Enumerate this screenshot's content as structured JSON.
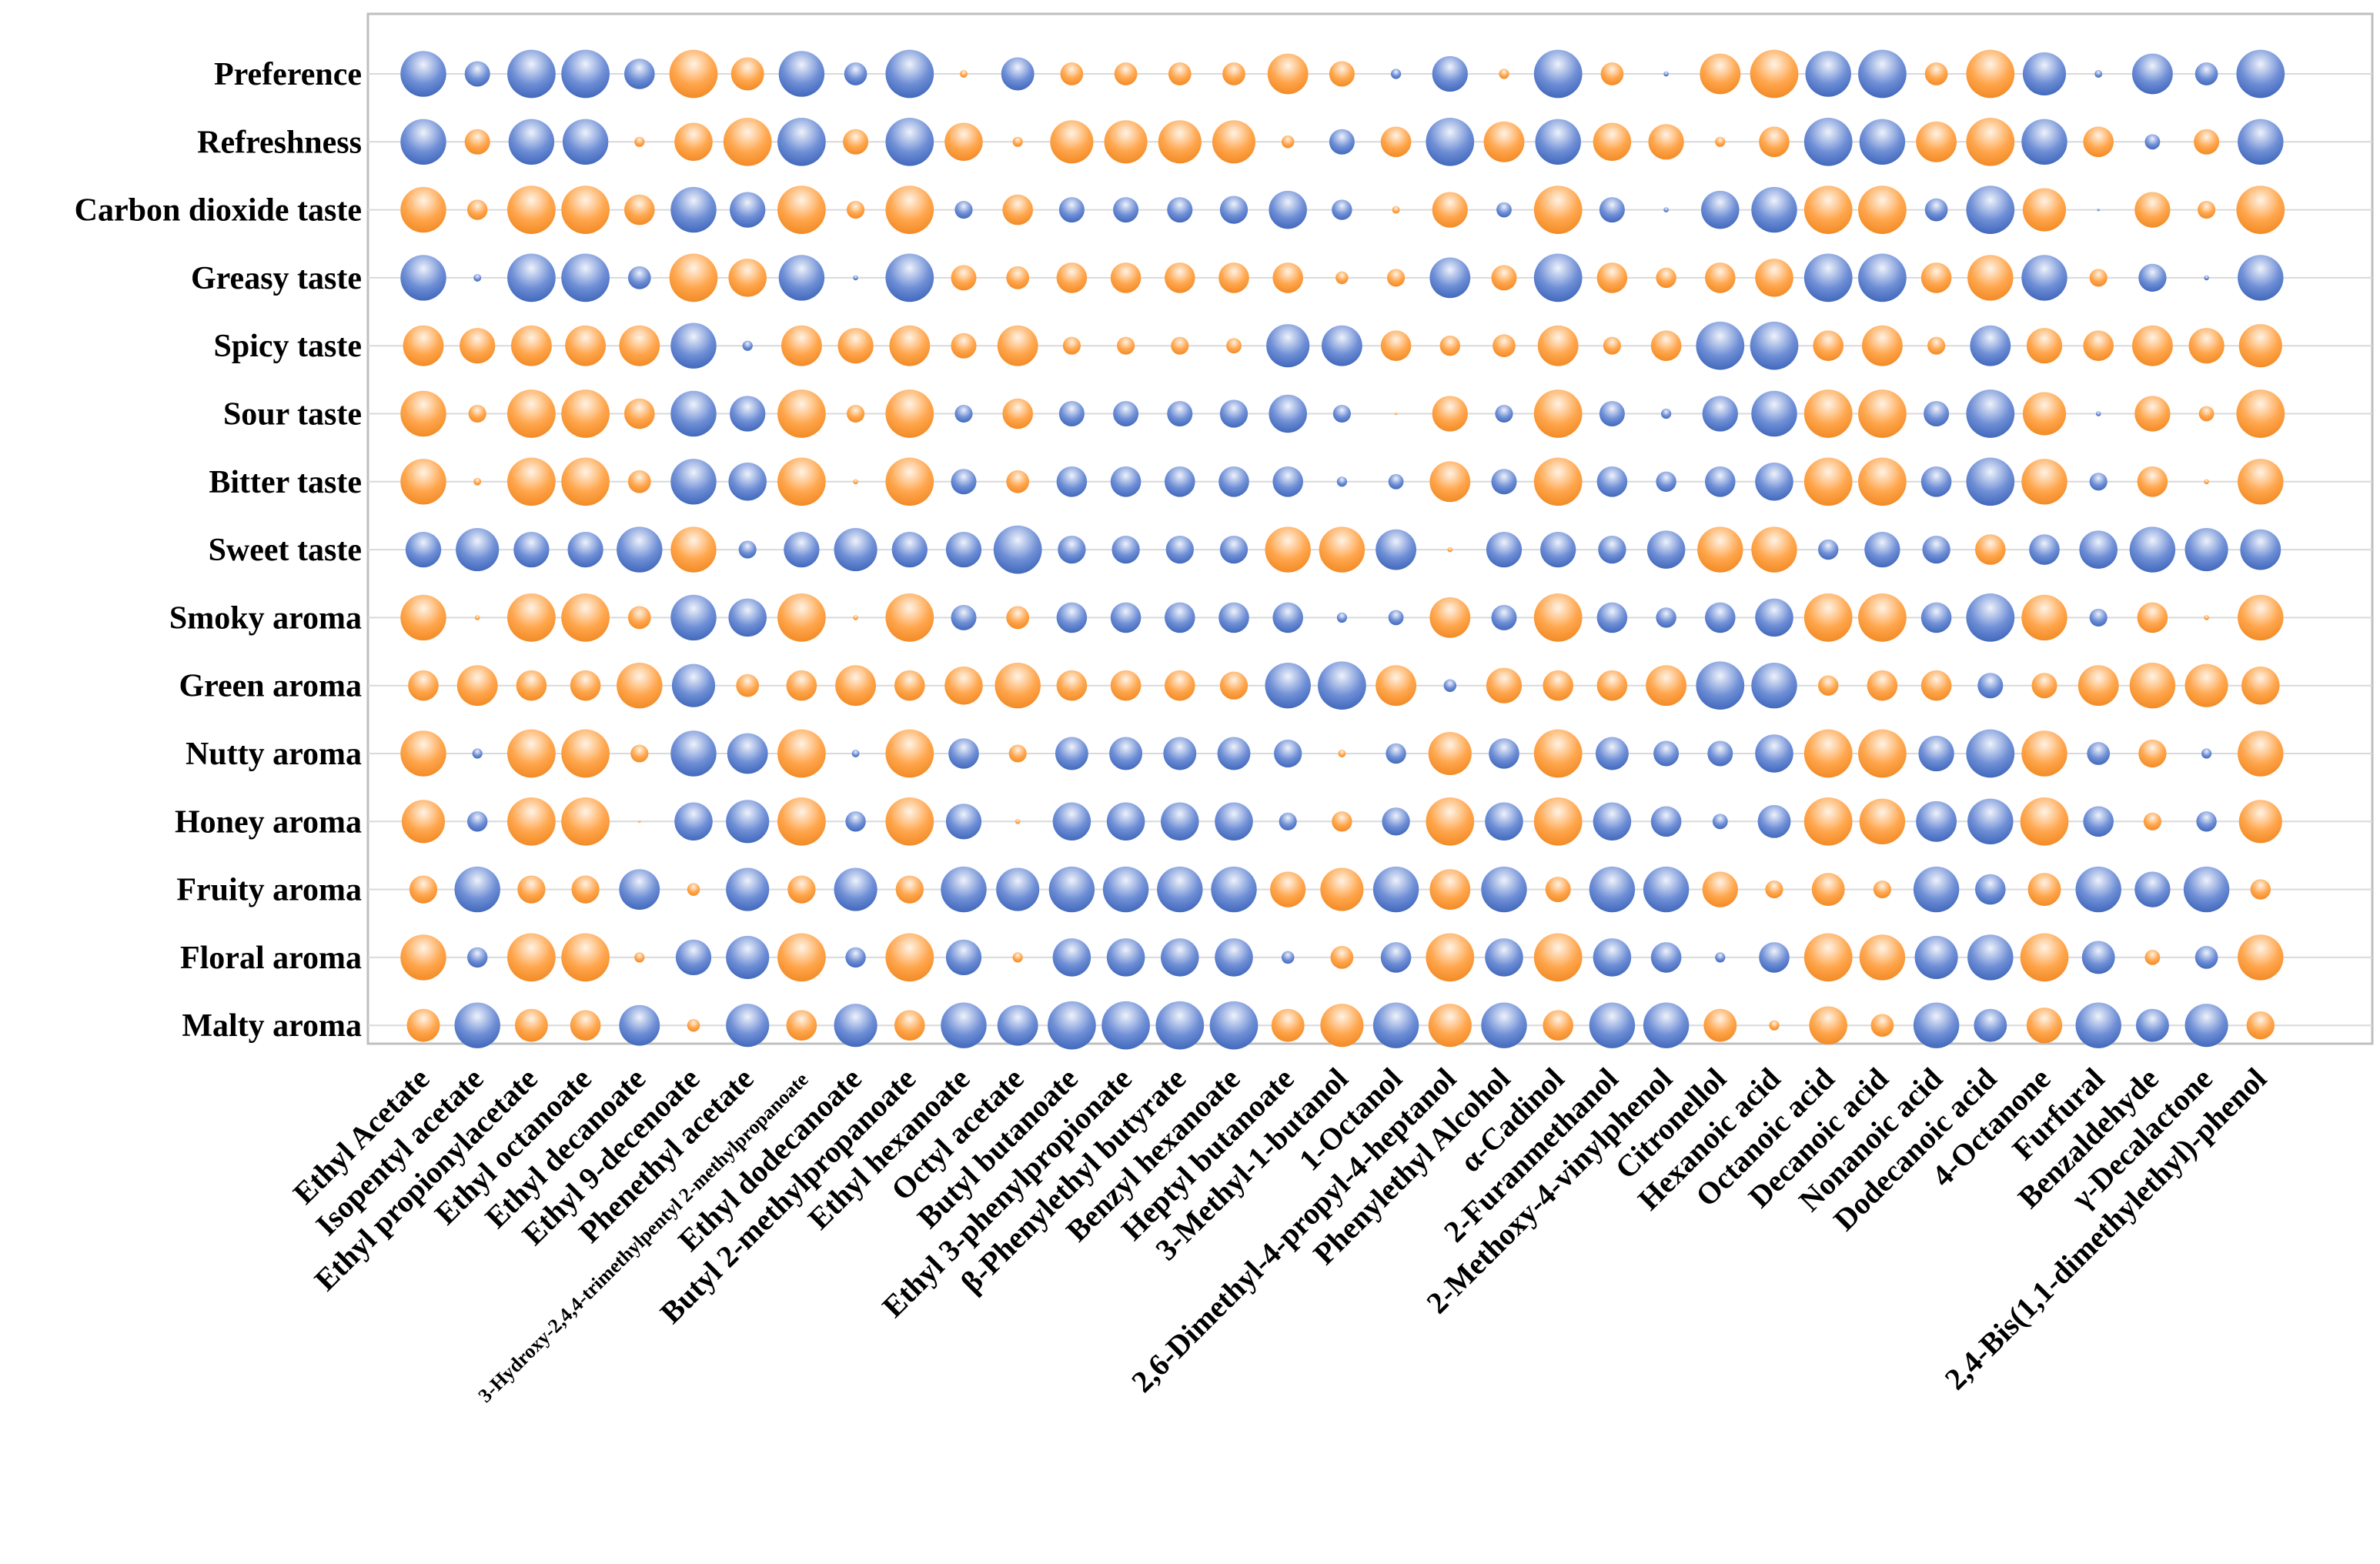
{
  "colors": {
    "positive": "#4472c4",
    "negative": "#ff9933"
  },
  "chart_data": {
    "type": "bubble-matrix",
    "legend": "none",
    "grid": true,
    "size_meaning": "absolute correlation",
    "color_meaning": "blue = positive, orange = negative",
    "rows": [
      "Preference",
      "Refreshness",
      "Carbon dioxide taste",
      "Greasy taste",
      "Spicy taste",
      "Sour taste",
      "Bitter taste",
      "Sweet taste",
      "Smoky aroma",
      "Green aroma",
      "Nutty aroma",
      "Honey aroma",
      "Fruity aroma",
      "Floral aroma",
      "Malty aroma"
    ],
    "columns": [
      "Ethyl Acetate",
      "Isopentyl acetate",
      "Ethyl propionylacetate",
      "Ethyl octanoate",
      "Ethyl decanoate",
      "Ethyl 9-decenoate",
      "Phenethyl acetate",
      "3-Hydroxy-2,4,4-trimethylpentyl 2-methylpropanoate",
      "Ethyl dodecanoate",
      "Butyl 2-methylpropanoate",
      "Ethyl hexanoate",
      "Octyl acetate",
      "Butyl butanoate",
      "Ethyl 3-phenylpropionate",
      "β-Phenylethyl butyrate",
      "Benzyl hexanoate",
      "Heptyl butanoate",
      "3-Methyl-1-butanol",
      "1-Octanol",
      "2,6-Dimethyl-4-propyl-4-heptanol",
      "Phenylethyl Alcohol",
      "α-Cadinol",
      "2-Furanmethanol",
      "2-Methoxy-4-vinylphenol",
      "Citronellol",
      "Hexanoic acid",
      "Octanoic acid",
      "Decanoic acid",
      "Nonanoic acid",
      "Dodecanoic acid",
      "4-Octanone",
      "Furfural",
      "Benzaldehyde",
      "γ-Decalactone",
      "2,4-Bis(1,1-dimethylethyl)-phenol"
    ],
    "values": [
      [
        0.9,
        0.5,
        0.95,
        0.95,
        0.6,
        -0.95,
        -0.65,
        0.9,
        0.45,
        0.95,
        -0.15,
        0.65,
        -0.45,
        -0.45,
        -0.45,
        -0.45,
        -0.8,
        -0.5,
        0.2,
        0.7,
        -0.2,
        0.95,
        -0.45,
        0.1,
        -0.8,
        -0.95,
        0.9,
        0.95,
        -0.45,
        -0.95,
        0.85,
        0.15,
        0.8,
        0.45,
        0.95
      ],
      [
        0.9,
        -0.5,
        0.9,
        0.9,
        -0.2,
        -0.75,
        -0.95,
        0.95,
        -0.5,
        0.95,
        -0.75,
        -0.2,
        -0.85,
        -0.85,
        -0.85,
        -0.85,
        -0.25,
        0.5,
        -0.6,
        0.95,
        -0.8,
        0.9,
        -0.75,
        -0.7,
        -0.2,
        -0.6,
        0.95,
        0.9,
        -0.8,
        -0.95,
        0.9,
        -0.6,
        0.3,
        -0.5,
        0.9
      ],
      [
        -0.9,
        -0.4,
        -0.95,
        -0.95,
        -0.6,
        0.9,
        0.7,
        -0.95,
        -0.35,
        -0.95,
        0.35,
        -0.6,
        0.5,
        0.5,
        0.5,
        0.55,
        0.75,
        0.4,
        -0.15,
        -0.7,
        0.3,
        -0.95,
        0.5,
        0.1,
        0.75,
        0.9,
        -0.95,
        -0.95,
        0.45,
        0.95,
        -0.85,
        0.05,
        -0.7,
        -0.35,
        -0.95
      ],
      [
        0.9,
        0.15,
        0.95,
        0.95,
        0.45,
        -0.95,
        -0.75,
        0.9,
        0.1,
        0.95,
        -0.5,
        -0.45,
        -0.6,
        -0.6,
        -0.6,
        -0.6,
        -0.6,
        -0.25,
        -0.35,
        0.8,
        -0.5,
        0.95,
        -0.6,
        -0.4,
        -0.6,
        -0.75,
        0.95,
        0.95,
        -0.6,
        -0.9,
        0.9,
        -0.35,
        0.55,
        0.1,
        0.9
      ],
      [
        -0.8,
        -0.7,
        -0.8,
        -0.8,
        -0.8,
        0.9,
        0.2,
        -0.8,
        -0.7,
        -0.8,
        -0.5,
        -0.8,
        -0.35,
        -0.35,
        -0.35,
        -0.3,
        0.85,
        0.8,
        -0.6,
        -0.4,
        -0.45,
        -0.8,
        -0.35,
        -0.6,
        0.95,
        0.95,
        -0.6,
        -0.8,
        -0.35,
        0.8,
        -0.7,
        -0.6,
        -0.8,
        -0.7,
        -0.85
      ],
      [
        -0.9,
        -0.35,
        -0.95,
        -0.95,
        -0.6,
        0.9,
        0.7,
        -0.95,
        -0.35,
        -0.95,
        0.35,
        -0.6,
        0.5,
        0.5,
        0.5,
        0.55,
        0.75,
        0.35,
        -0.05,
        -0.7,
        0.35,
        -0.95,
        0.5,
        0.2,
        0.7,
        0.9,
        -0.95,
        -0.95,
        0.5,
        0.95,
        -0.85,
        0.1,
        -0.7,
        -0.3,
        -0.95
      ],
      [
        -0.9,
        -0.15,
        -0.95,
        -0.95,
        -0.45,
        0.9,
        0.75,
        -0.95,
        -0.1,
        -0.95,
        0.5,
        -0.45,
        0.6,
        0.6,
        0.6,
        0.6,
        0.6,
        0.2,
        0.3,
        -0.8,
        0.5,
        -0.95,
        0.6,
        0.4,
        0.6,
        0.75,
        -0.95,
        -0.95,
        0.6,
        0.95,
        -0.9,
        0.35,
        -0.6,
        -0.1,
        -0.9
      ],
      [
        0.7,
        0.85,
        0.7,
        0.7,
        0.9,
        -0.9,
        0.35,
        0.7,
        0.85,
        0.7,
        0.7,
        0.95,
        0.55,
        0.55,
        0.55,
        0.55,
        -0.9,
        -0.9,
        0.8,
        -0.1,
        0.7,
        0.7,
        0.55,
        0.75,
        -0.9,
        -0.9,
        0.4,
        0.7,
        0.55,
        -0.6,
        0.6,
        0.75,
        0.9,
        0.85,
        0.8
      ],
      [
        -0.9,
        -0.1,
        -0.95,
        -0.95,
        -0.45,
        0.9,
        0.75,
        -0.95,
        -0.1,
        -0.95,
        0.5,
        -0.45,
        0.6,
        0.6,
        0.6,
        0.6,
        0.6,
        0.2,
        0.3,
        -0.8,
        0.5,
        -0.95,
        0.6,
        0.4,
        0.6,
        0.75,
        -0.95,
        -0.95,
        0.6,
        0.95,
        -0.9,
        0.35,
        -0.6,
        -0.1,
        -0.9
      ],
      [
        -0.6,
        -0.8,
        -0.6,
        -0.6,
        -0.9,
        0.85,
        -0.45,
        -0.6,
        -0.8,
        -0.6,
        -0.75,
        -0.9,
        -0.6,
        -0.6,
        -0.6,
        -0.55,
        0.9,
        0.95,
        -0.8,
        0.25,
        -0.7,
        -0.6,
        -0.6,
        -0.8,
        0.95,
        0.9,
        -0.4,
        -0.6,
        -0.6,
        0.5,
        -0.5,
        -0.8,
        -0.9,
        -0.85,
        -0.75
      ],
      [
        -0.9,
        0.2,
        -0.95,
        -0.95,
        -0.35,
        0.9,
        0.8,
        -0.95,
        0.15,
        -0.95,
        0.6,
        -0.35,
        0.65,
        0.65,
        0.65,
        0.65,
        0.55,
        -0.15,
        0.4,
        -0.85,
        0.6,
        -0.95,
        0.65,
        0.5,
        0.5,
        0.75,
        -0.95,
        -0.95,
        0.7,
        0.95,
        -0.9,
        0.45,
        -0.55,
        0.2,
        -0.9
      ],
      [
        -0.85,
        0.4,
        -0.95,
        -0.95,
        -0.05,
        0.75,
        0.85,
        -0.95,
        0.4,
        -0.95,
        0.7,
        -0.1,
        0.75,
        0.75,
        0.75,
        0.75,
        0.35,
        -0.4,
        0.55,
        -0.95,
        0.75,
        -0.95,
        0.75,
        0.6,
        0.3,
        0.65,
        -0.95,
        -0.9,
        0.8,
        0.9,
        -0.95,
        0.6,
        -0.35,
        0.4,
        -0.85
      ],
      [
        -0.55,
        0.9,
        -0.55,
        -0.55,
        0.8,
        -0.25,
        0.85,
        -0.55,
        0.85,
        -0.55,
        0.9,
        0.85,
        0.9,
        0.9,
        0.9,
        0.9,
        -0.7,
        -0.85,
        0.9,
        -0.8,
        0.9,
        -0.5,
        0.9,
        0.9,
        -0.7,
        -0.35,
        -0.65,
        -0.35,
        0.9,
        0.6,
        -0.65,
        0.9,
        0.7,
        0.9,
        -0.4
      ],
      [
        -0.9,
        0.4,
        -0.95,
        -0.95,
        -0.2,
        0.7,
        0.85,
        -0.95,
        0.4,
        -0.95,
        0.7,
        -0.2,
        0.75,
        0.75,
        0.75,
        0.75,
        0.25,
        -0.45,
        0.6,
        -0.95,
        0.75,
        -0.95,
        0.75,
        0.6,
        0.2,
        0.6,
        -0.95,
        -0.9,
        0.85,
        0.9,
        -0.95,
        0.65,
        -0.3,
        0.45,
        -0.9
      ],
      [
        -0.65,
        0.9,
        -0.65,
        -0.6,
        0.8,
        -0.25,
        0.85,
        -0.6,
        0.85,
        -0.6,
        0.9,
        0.8,
        0.95,
        0.95,
        0.95,
        0.95,
        -0.65,
        -0.85,
        0.9,
        -0.85,
        0.9,
        -0.6,
        0.9,
        0.9,
        -0.65,
        -0.2,
        -0.75,
        -0.45,
        0.9,
        0.65,
        -0.7,
        0.9,
        0.65,
        0.85,
        -0.55
      ]
    ]
  }
}
